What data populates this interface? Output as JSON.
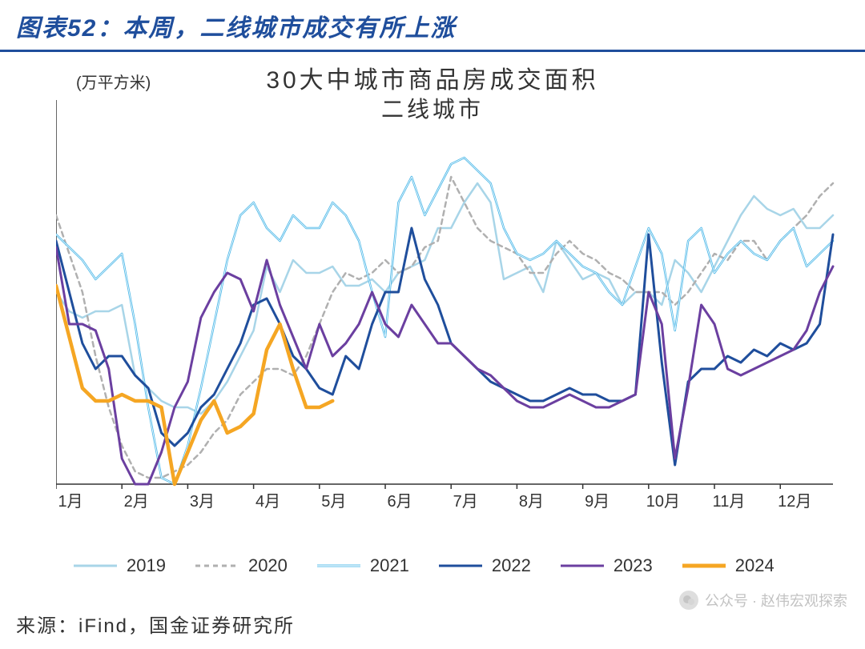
{
  "header": {
    "title": "图表52：本周，二线城市成交有所上涨"
  },
  "chart": {
    "type": "line",
    "unit_label": "(万平方米)",
    "title_line1": "30大中城市商品房成交面积",
    "title_line2": "二线城市",
    "background_color": "#ffffff",
    "axis_color": "#333333",
    "ylim": [
      0,
      60
    ],
    "ytick_step": 10,
    "yticks": [
      0,
      10,
      20,
      30,
      40,
      50,
      60
    ],
    "xlabels": [
      "1月",
      "2月",
      "3月",
      "4月",
      "5月",
      "6月",
      "7月",
      "8月",
      "9月",
      "10月",
      "11月",
      "12月"
    ],
    "x_points_per_month": 5,
    "title_fontsize": 30,
    "subtitle_fontsize": 28,
    "axis_fontsize": 20,
    "legend_fontsize": 22,
    "series": [
      {
        "name": "2019",
        "color": "#a8d5e8",
        "width": 2.5,
        "dash": "none",
        "values": [
          30,
          27,
          26,
          27,
          27,
          28,
          17,
          15,
          13,
          12,
          12,
          11,
          13,
          16,
          20,
          24,
          34,
          30,
          35,
          33,
          33,
          34,
          31,
          31,
          32,
          30,
          33,
          34,
          35,
          40,
          40,
          44,
          47,
          44,
          32,
          33,
          34,
          30,
          38,
          35,
          32,
          33,
          32,
          28,
          30,
          30,
          28,
          35,
          33,
          30,
          34,
          38,
          42,
          45,
          43,
          42,
          43,
          40,
          40,
          42
        ]
      },
      {
        "name": "2020",
        "color": "#b0b0b0",
        "width": 2.5,
        "dash": "6,5",
        "values": [
          42,
          36,
          30,
          20,
          12,
          6,
          2,
          1,
          1,
          2,
          3,
          5,
          8,
          10,
          14,
          16,
          18,
          18,
          17,
          20,
          25,
          30,
          33,
          32,
          33,
          35,
          33,
          34,
          37,
          38,
          48,
          44,
          40,
          38,
          37,
          36,
          33,
          33,
          36,
          38,
          36,
          35,
          33,
          32,
          30,
          30,
          30,
          28,
          30,
          33,
          36,
          35,
          38,
          38,
          35,
          38,
          40,
          42,
          45,
          47
        ]
      },
      {
        "name": "2021",
        "color": "#4db8e8",
        "width": 2.5,
        "dash": "none",
        "double": true,
        "values": [
          39,
          37,
          35,
          32,
          34,
          36,
          25,
          12,
          1,
          0,
          6,
          15,
          25,
          35,
          42,
          44,
          40,
          38,
          42,
          40,
          40,
          44,
          42,
          38,
          30,
          23,
          44,
          48,
          42,
          46,
          50,
          51,
          49,
          47,
          40,
          36,
          35,
          36,
          38,
          36,
          34,
          33,
          30,
          28,
          34,
          40,
          36,
          24,
          38,
          40,
          33,
          36,
          38,
          36,
          35,
          38,
          40,
          34,
          36,
          38
        ]
      },
      {
        "name": "2022",
        "color": "#1f4e9c",
        "width": 3,
        "dash": "none",
        "values": [
          38,
          30,
          22,
          18,
          20,
          20,
          17,
          15,
          8,
          6,
          8,
          12,
          14,
          18,
          22,
          28,
          29,
          25,
          20,
          18,
          15,
          14,
          20,
          18,
          25,
          30,
          30,
          40,
          32,
          28,
          22,
          20,
          18,
          16,
          15,
          14,
          13,
          13,
          14,
          15,
          14,
          14,
          13,
          13,
          14,
          39,
          19,
          3,
          16,
          18,
          18,
          20,
          19,
          21,
          20,
          22,
          21,
          22,
          25,
          39
        ]
      },
      {
        "name": "2023",
        "color": "#6b3fa0",
        "width": 3,
        "dash": "none",
        "values": [
          37,
          25,
          25,
          24,
          18,
          4,
          0,
          0,
          5,
          12,
          16,
          26,
          30,
          33,
          32,
          27,
          35,
          28,
          23,
          18,
          25,
          20,
          22,
          25,
          30,
          25,
          23,
          28,
          25,
          22,
          22,
          20,
          18,
          17,
          15,
          13,
          12,
          12,
          13,
          14,
          13,
          12,
          12,
          13,
          14,
          30,
          25,
          4,
          15,
          28,
          25,
          18,
          17,
          18,
          19,
          20,
          21,
          24,
          30,
          34
        ]
      },
      {
        "name": "2024",
        "color": "#f5a623",
        "width": 4.5,
        "dash": "none",
        "values": [
          31,
          23,
          15,
          13,
          13,
          14,
          13,
          13,
          12,
          0,
          5,
          10,
          13,
          8,
          9,
          11,
          21,
          25,
          18,
          12,
          12,
          13
        ]
      }
    ]
  },
  "legend_items": [
    {
      "label": "2019",
      "color": "#a8d5e8",
      "dash": "none",
      "width": 3
    },
    {
      "label": "2020",
      "color": "#b0b0b0",
      "dash": "6,5",
      "width": 3
    },
    {
      "label": "2021",
      "color": "#4db8e8",
      "dash": "none",
      "width": 3,
      "double": true
    },
    {
      "label": "2022",
      "color": "#1f4e9c",
      "dash": "none",
      "width": 3
    },
    {
      "label": "2023",
      "color": "#6b3fa0",
      "dash": "none",
      "width": 3
    },
    {
      "label": "2024",
      "color": "#f5a623",
      "dash": "none",
      "width": 5
    }
  ],
  "footer": {
    "source_label": "来源：iFind，国金证券研究所"
  },
  "watermark": {
    "text": "公众号 · 赵伟宏观探索"
  }
}
